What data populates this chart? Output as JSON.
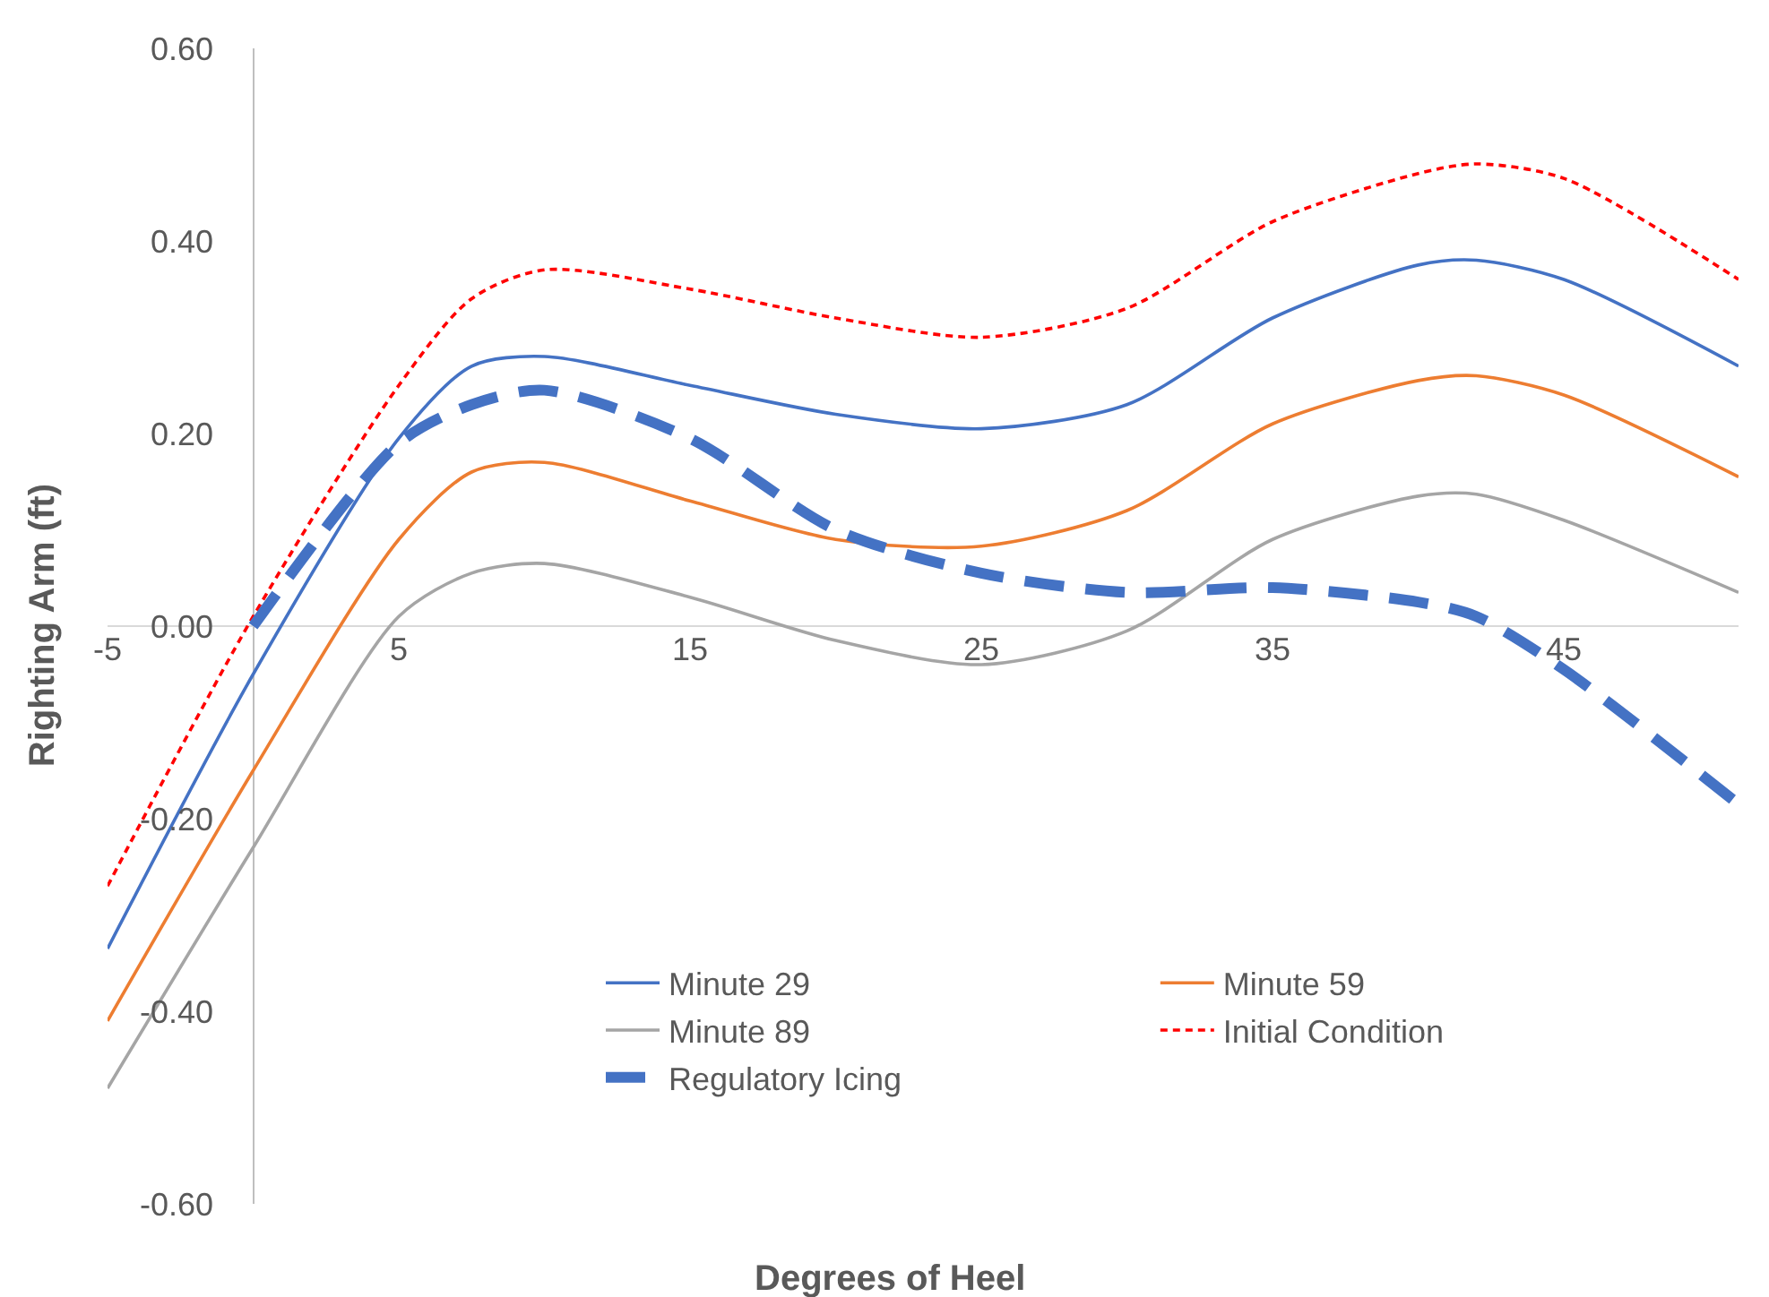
{
  "chart_data": {
    "type": "line",
    "xlabel": "Degrees of Heel",
    "ylabel": "Righting Arm (ft)",
    "x": [
      -5,
      0,
      5,
      7.5,
      10,
      15,
      20,
      25,
      30,
      35,
      40,
      42,
      45,
      51
    ],
    "series": [
      {
        "name": "Minute 29",
        "color": "#4472c4",
        "line_style": "solid",
        "values": [
          -0.335,
          -0.05,
          0.195,
          0.27,
          0.28,
          0.25,
          0.22,
          0.205,
          0.23,
          0.32,
          0.375,
          0.38,
          0.36,
          0.27
        ]
      },
      {
        "name": "Minute 59",
        "color": "#ed7d31",
        "line_style": "solid",
        "values": [
          -0.41,
          -0.15,
          0.09,
          0.16,
          0.17,
          0.13,
          0.09,
          0.083,
          0.12,
          0.21,
          0.255,
          0.26,
          0.24,
          0.155
        ]
      },
      {
        "name": "Minute 89",
        "color": "#a5a5a5",
        "line_style": "solid",
        "values": [
          -0.48,
          -0.23,
          0.01,
          0.055,
          0.065,
          0.03,
          -0.015,
          -0.04,
          -0.005,
          0.09,
          0.135,
          0.137,
          0.11,
          0.035
        ]
      },
      {
        "name": "Initial Condition",
        "color": "#ff0000",
        "line_style": "dotted",
        "values": [
          -0.27,
          0.01,
          0.25,
          0.34,
          0.37,
          0.35,
          0.32,
          0.3,
          0.33,
          0.42,
          0.47,
          0.48,
          0.465,
          0.36
        ]
      },
      {
        "name": "Regulatory Icing",
        "color": "#4472c4",
        "line_style": "dashed",
        "values": [
          null,
          0,
          0.19,
          0.23,
          0.245,
          0.195,
          0.1,
          0.055,
          0.035,
          0.04,
          0.025,
          0.01,
          -0.045,
          -0.185
        ]
      }
    ],
    "xlim": [
      -5,
      51
    ],
    "xticks": [
      -5,
      5,
      15,
      25,
      35,
      45
    ],
    "ylim": [
      -0.6,
      0.6
    ],
    "yticks": [
      {
        "value": -0.6,
        "label": "-0.60"
      },
      {
        "value": -0.4,
        "label": "-0.40"
      },
      {
        "value": -0.2,
        "label": "-0.20"
      },
      {
        "value": 0,
        "label": "0.00"
      },
      {
        "value": 0.2,
        "label": "0.20"
      },
      {
        "value": 0.4,
        "label": "0.40"
      },
      {
        "value": 0.6,
        "label": "0.60"
      }
    ],
    "grid": false,
    "legend": "bottom",
    "marker": "none"
  }
}
